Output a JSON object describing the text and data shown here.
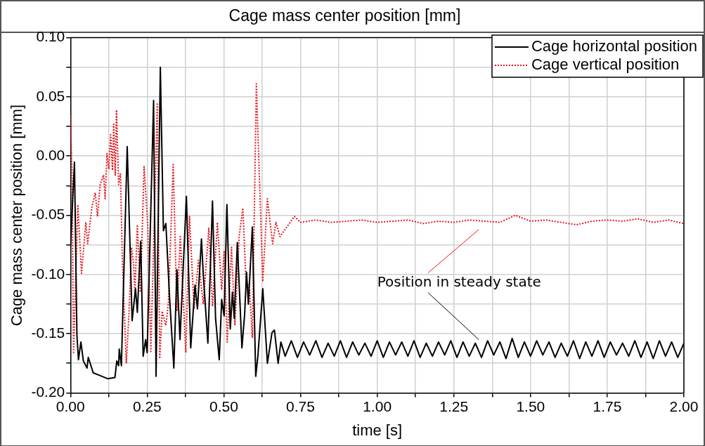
{
  "chart_data": {
    "type": "line",
    "title": "Cage mass center position [mm]",
    "xlabel": "time [s]",
    "ylabel": "Cage mass center position [mm]",
    "xlim": [
      0,
      2
    ],
    "xticks": [
      {
        "value": 0,
        "label": "0.00"
      },
      {
        "value": 0.125,
        "label": null
      },
      {
        "value": 0.25,
        "label": "0.25"
      },
      {
        "value": 0.375,
        "label": null
      },
      {
        "value": 0.5,
        "label": "0.50"
      },
      {
        "value": 0.625,
        "label": null
      },
      {
        "value": 0.75,
        "label": "0.75"
      },
      {
        "value": 0.875,
        "label": null
      },
      {
        "value": 1,
        "label": "1.00"
      },
      {
        "value": 1.125,
        "label": null
      },
      {
        "value": 1.25,
        "label": "1.25"
      },
      {
        "value": 1.375,
        "label": null
      },
      {
        "value": 1.5,
        "label": "1.50"
      },
      {
        "value": 1.625,
        "label": null
      },
      {
        "value": 1.75,
        "label": "1.75"
      },
      {
        "value": 1.875,
        "label": null
      },
      {
        "value": 2,
        "label": "2.00"
      }
    ],
    "ylim": [
      -0.2,
      0.1
    ],
    "yticks": [
      {
        "value": -0.2,
        "label": "-0.20"
      },
      {
        "value": -0.175,
        "label": null
      },
      {
        "value": -0.15,
        "label": "-0.15"
      },
      {
        "value": -0.125,
        "label": null
      },
      {
        "value": -0.1,
        "label": "-0.10"
      },
      {
        "value": -0.075,
        "label": null
      },
      {
        "value": -0.05,
        "label": "-0.05"
      },
      {
        "value": -0.025,
        "label": null
      },
      {
        "value": 0,
        "label": "0.00"
      },
      {
        "value": 0.025,
        "label": null
      },
      {
        "value": 0.05,
        "label": "0.05"
      },
      {
        "value": 0.075,
        "label": null
      },
      {
        "value": 0.1,
        "label": "0.10"
      }
    ],
    "grid": true,
    "legend": "top right",
    "marker": "none",
    "annotations": [
      "Position in steady state"
    ],
    "series": [
      {
        "name": "Cage horizontal position",
        "color": "#000000",
        "line_style": "solid",
        "x": [
          0,
          0.013,
          0.021,
          0.026,
          0.034,
          0.042,
          0.054,
          0.058,
          0.074,
          0.093,
          0.121,
          0.145,
          0.151,
          0.157,
          0.159,
          0.166,
          0.185,
          0.201,
          0.212,
          0.218,
          0.229,
          0.237,
          0.245,
          0.25,
          0.271,
          0.279,
          0.293,
          0.303,
          0.311,
          0.323,
          0.337,
          0.347,
          0.357,
          0.378,
          0.392,
          0.406,
          0.414,
          0.427,
          0.433,
          0.448,
          0.463,
          0.473,
          0.485,
          0.493,
          0.501,
          0.51,
          0.521,
          0.528,
          0.534,
          0.544,
          0.559,
          0.568,
          0.574,
          0.58,
          0.593,
          0.604,
          0.611,
          0.627,
          0.642,
          0.657,
          0.665,
          0.677,
          0.686,
          0.7,
          0.72,
          0.74,
          0.76,
          0.78,
          0.8,
          0.82,
          0.84,
          0.86,
          0.88,
          0.9,
          0.92,
          0.94,
          0.96,
          0.98,
          1,
          1.02,
          1.04,
          1.06,
          1.08,
          1.1,
          1.12,
          1.14,
          1.16,
          1.18,
          1.2,
          1.22,
          1.24,
          1.26,
          1.28,
          1.3,
          1.32,
          1.34,
          1.36,
          1.38,
          1.4,
          1.42,
          1.44,
          1.46,
          1.48,
          1.5,
          1.52,
          1.54,
          1.56,
          1.58,
          1.6,
          1.62,
          1.64,
          1.66,
          1.68,
          1.7,
          1.72,
          1.74,
          1.76,
          1.78,
          1.8,
          1.82,
          1.84,
          1.86,
          1.88,
          1.9,
          1.92,
          1.94,
          1.96,
          1.98,
          2
        ],
        "values": [
          -0.076,
          -0.005,
          -0.151,
          -0.172,
          -0.157,
          -0.173,
          -0.179,
          -0.17,
          -0.183,
          -0.185,
          -0.188,
          -0.187,
          -0.173,
          -0.177,
          -0.163,
          -0.177,
          0.008,
          -0.139,
          -0.112,
          -0.132,
          -0.072,
          -0.169,
          -0.155,
          -0.166,
          0.047,
          -0.186,
          0.075,
          -0.063,
          -0.057,
          -0.119,
          -0.179,
          -0.096,
          -0.155,
          -0.034,
          -0.162,
          -0.109,
          -0.129,
          -0.07,
          -0.1,
          -0.158,
          -0.038,
          -0.137,
          -0.172,
          -0.121,
          -0.135,
          -0.041,
          -0.146,
          -0.115,
          -0.137,
          -0.073,
          -0.162,
          -0.133,
          -0.098,
          -0.125,
          -0.06,
          -0.186,
          -0.169,
          -0.112,
          -0.175,
          -0.149,
          -0.147,
          -0.175,
          -0.157,
          -0.169,
          -0.156,
          -0.17,
          -0.157,
          -0.168,
          -0.156,
          -0.17,
          -0.158,
          -0.169,
          -0.156,
          -0.17,
          -0.157,
          -0.168,
          -0.158,
          -0.169,
          -0.156,
          -0.17,
          -0.157,
          -0.168,
          -0.157,
          -0.169,
          -0.156,
          -0.17,
          -0.158,
          -0.169,
          -0.157,
          -0.168,
          -0.156,
          -0.17,
          -0.157,
          -0.169,
          -0.158,
          -0.17,
          -0.156,
          -0.168,
          -0.157,
          -0.171,
          -0.154,
          -0.17,
          -0.157,
          -0.169,
          -0.156,
          -0.168,
          -0.157,
          -0.17,
          -0.158,
          -0.169,
          -0.156,
          -0.171,
          -0.157,
          -0.169,
          -0.156,
          -0.17,
          -0.157,
          -0.168,
          -0.158,
          -0.169,
          -0.156,
          -0.17,
          -0.157,
          -0.171,
          -0.156,
          -0.169,
          -0.157,
          -0.17,
          -0.158
        ]
      },
      {
        "name": "Cage vertical position",
        "color": "#e8171c",
        "line_style": "dotted",
        "x": [
          0,
          0.005,
          0.01,
          0.024,
          0.036,
          0.05,
          0.056,
          0.07,
          0.081,
          0.088,
          0.097,
          0.108,
          0.113,
          0.119,
          0.125,
          0.131,
          0.137,
          0.141,
          0.146,
          0.15,
          0.157,
          0.163,
          0.169,
          0.182,
          0.19,
          0.199,
          0.206,
          0.21,
          0.218,
          0.228,
          0.24,
          0.252,
          0.262,
          0.283,
          0.291,
          0.299,
          0.311,
          0.319,
          0.335,
          0.347,
          0.358,
          0.376,
          0.388,
          0.403,
          0.417,
          0.433,
          0.451,
          0.463,
          0.479,
          0.493,
          0.501,
          0.511,
          0.525,
          0.536,
          0.55,
          0.562,
          0.572,
          0.584,
          0.593,
          0.606,
          0.627,
          0.642,
          0.659,
          0.67,
          0.683,
          0.73,
          0.75,
          0.8,
          0.85,
          0.9,
          0.95,
          1,
          1.05,
          1.1,
          1.15,
          1.2,
          1.25,
          1.3,
          1.35,
          1.4,
          1.45,
          1.5,
          1.55,
          1.6,
          1.65,
          1.7,
          1.75,
          1.8,
          1.85,
          1.9,
          1.95,
          2
        ],
        "values": [
          0.034,
          -0.015,
          -0.167,
          -0.041,
          -0.099,
          -0.056,
          -0.074,
          -0.043,
          -0.031,
          -0.051,
          -0.024,
          -0.016,
          -0.036,
          0.002,
          -0.011,
          0.018,
          -0.012,
          0.027,
          -0.016,
          0.039,
          -0.024,
          -0.015,
          -0.086,
          -0.175,
          -0.137,
          -0.077,
          -0.092,
          -0.117,
          -0.058,
          -0.115,
          -0.009,
          -0.058,
          -0.165,
          0.045,
          -0.171,
          -0.131,
          -0.143,
          -0.125,
          -0.007,
          -0.131,
          -0.068,
          -0.166,
          -0.051,
          -0.129,
          -0.088,
          -0.125,
          -0.061,
          -0.127,
          -0.056,
          -0.113,
          -0.08,
          -0.157,
          -0.077,
          -0.143,
          -0.068,
          -0.044,
          -0.104,
          -0.113,
          -0.153,
          0.061,
          -0.106,
          -0.036,
          -0.074,
          -0.056,
          -0.068,
          -0.051,
          -0.056,
          -0.054,
          -0.056,
          -0.055,
          -0.054,
          -0.056,
          -0.055,
          -0.054,
          -0.057,
          -0.055,
          -0.056,
          -0.054,
          -0.055,
          -0.056,
          -0.05,
          -0.055,
          -0.054,
          -0.056,
          -0.058,
          -0.055,
          -0.054,
          -0.055,
          -0.053,
          -0.056,
          -0.054,
          -0.057
        ]
      }
    ]
  }
}
